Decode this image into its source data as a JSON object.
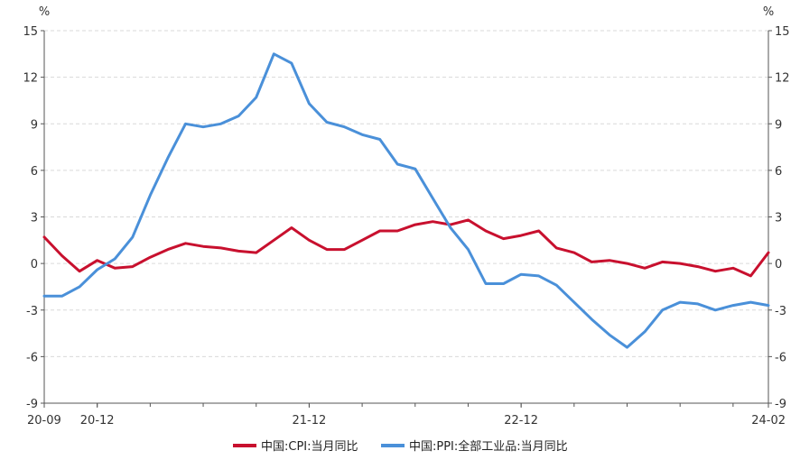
{
  "chart_data": {
    "type": "line",
    "title": "",
    "xlabel": "",
    "y_unit_left": "%",
    "y_unit_right": "%",
    "ylim": [
      -9,
      15
    ],
    "yticks": [
      15,
      12,
      9,
      6,
      3,
      0,
      -3,
      -6,
      -9
    ],
    "grid": "horizontal dashed",
    "legend_position": "bottom",
    "x": [
      "20-09",
      "20-10",
      "20-11",
      "20-12",
      "21-01",
      "21-02",
      "21-03",
      "21-04",
      "21-05",
      "21-06",
      "21-07",
      "21-08",
      "21-09",
      "21-10",
      "21-11",
      "21-12",
      "22-01",
      "22-02",
      "22-03",
      "22-04",
      "22-05",
      "22-06",
      "22-07",
      "22-08",
      "22-09",
      "22-10",
      "22-11",
      "22-12",
      "23-01",
      "23-02",
      "23-03",
      "23-04",
      "23-05",
      "23-06",
      "23-07",
      "23-08",
      "23-09",
      "23-10",
      "23-11",
      "23-12",
      "24-01",
      "24-02"
    ],
    "x_tick_labels": [
      "20-09",
      "20-12",
      "21-12",
      "22-12",
      "24-02"
    ],
    "series": [
      {
        "name": "中国:CPI:当月同比",
        "color": "#c8102e",
        "values": [
          1.7,
          0.5,
          -0.5,
          0.2,
          -0.3,
          -0.2,
          0.4,
          0.9,
          1.3,
          1.1,
          1.0,
          0.8,
          0.7,
          1.5,
          2.3,
          1.5,
          0.9,
          0.9,
          1.5,
          2.1,
          2.1,
          2.5,
          2.7,
          2.5,
          2.8,
          2.1,
          1.6,
          1.8,
          2.1,
          1.0,
          0.7,
          0.1,
          0.2,
          0.0,
          -0.3,
          0.1,
          0.0,
          -0.2,
          -0.5,
          -0.3,
          -0.8,
          0.7
        ]
      },
      {
        "name": "中国:PPI:全部工业品:当月同比",
        "color": "#4a90d9",
        "values": [
          -2.1,
          -2.1,
          -1.5,
          -0.4,
          0.3,
          1.7,
          4.4,
          6.8,
          9.0,
          8.8,
          9.0,
          9.5,
          10.7,
          13.5,
          12.9,
          10.3,
          9.1,
          8.8,
          8.3,
          8.0,
          6.4,
          6.1,
          4.2,
          2.3,
          0.9,
          -1.3,
          -1.3,
          -0.7,
          -0.8,
          -1.4,
          -2.5,
          -3.6,
          -4.6,
          -5.4,
          -4.4,
          -3.0,
          -2.5,
          -2.6,
          -3.0,
          -2.7,
          -2.5,
          -2.7
        ]
      }
    ]
  }
}
